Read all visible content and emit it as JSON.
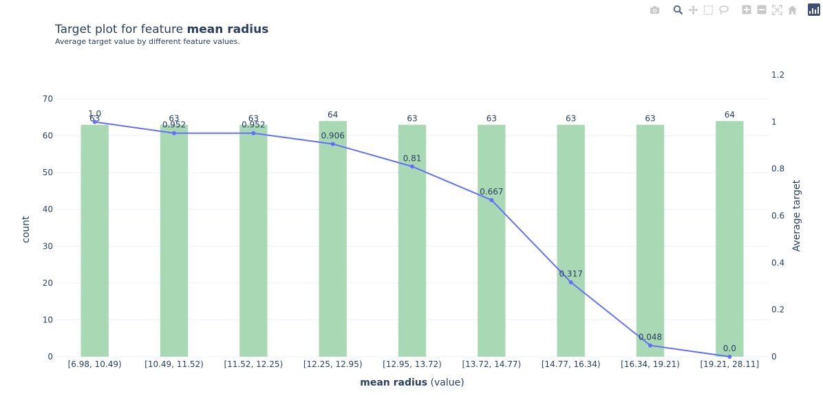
{
  "modebar": {
    "icons": [
      "camera-icon",
      "zoom-icon",
      "pan-icon",
      "box-select-icon",
      "lasso-icon",
      "zoom-in-icon",
      "zoom-out-icon",
      "autoscale-icon",
      "reset-axes-icon",
      "plotly-logo-icon"
    ]
  },
  "title_prefix": "Target plot for feature ",
  "title_feature": "mean radius",
  "subtitle": "Average target value by different feature values.",
  "chart_data": {
    "type": "bar",
    "categories": [
      "[6.98, 10.49)",
      "[10.49, 11.52)",
      "[11.52, 12.25)",
      "[12.25, 12.95)",
      "[12.95, 13.72)",
      "[13.72, 14.77)",
      "[14.77, 16.34)",
      "[16.34, 19.21)",
      "[19.21, 28.11]"
    ],
    "series": [
      {
        "type": "bar",
        "axis": "y",
        "values": [
          63,
          63,
          63,
          64,
          63,
          63,
          63,
          63,
          64
        ],
        "labels": [
          "63",
          "63",
          "63",
          "64",
          "63",
          "63",
          "63",
          "63",
          "64"
        ],
        "color": "#a9d9b4"
      },
      {
        "type": "line",
        "axis": "y2",
        "values": [
          1.0,
          0.952,
          0.952,
          0.906,
          0.81,
          0.667,
          0.317,
          0.048,
          0.0
        ],
        "labels": [
          "1.0",
          "0.952",
          "0.952",
          "0.906",
          "0.81",
          "0.667",
          "0.317",
          "0.048",
          "0.0"
        ],
        "color": "#636efa"
      }
    ],
    "xlabel_bold": "mean radius",
    "xlabel_rest": " (value)",
    "ylabel": "count",
    "y2label": "Average target",
    "ylim": [
      0,
      70
    ],
    "yticks": [
      "0",
      "10",
      "20",
      "30",
      "40",
      "50",
      "60",
      "70"
    ],
    "y2lim": [
      0,
      1.2
    ],
    "y2ticks": [
      "0",
      "0.2",
      "0.4",
      "0.6",
      "0.8",
      "1",
      "1.2"
    ],
    "grid": true,
    "grid_color": "#ebf0f8",
    "axis_text_color": "#2a3f5f"
  }
}
